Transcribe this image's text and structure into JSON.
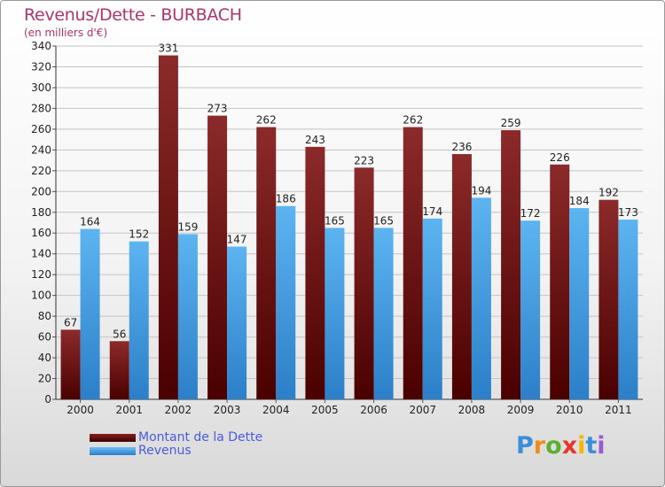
{
  "chart_data": {
    "type": "bar",
    "title": "Revenus/Dette - BURBACH",
    "subtitle": "(en milliers d'€)",
    "categories": [
      "2000",
      "2001",
      "2002",
      "2003",
      "2004",
      "2005",
      "2006",
      "2007",
      "2008",
      "2009",
      "2010",
      "2011"
    ],
    "series": [
      {
        "name": "Montant de la Dette",
        "color": "#7a1a1a",
        "values": [
          67,
          56,
          331,
          273,
          262,
          243,
          223,
          262,
          236,
          259,
          226,
          192
        ]
      },
      {
        "name": "Revenus",
        "color": "#4aa0e0",
        "values": [
          164,
          152,
          159,
          147,
          186,
          165,
          165,
          174,
          194,
          172,
          184,
          173
        ]
      }
    ],
    "ylim": [
      0,
      340
    ],
    "yticks": [
      0,
      20,
      40,
      60,
      80,
      100,
      120,
      140,
      160,
      180,
      200,
      220,
      240,
      260,
      280,
      300,
      320,
      340
    ],
    "grid": true,
    "legend_position": "bottom-left"
  },
  "logo": {
    "text": "Proxiti",
    "letters": [
      "P",
      "r",
      "o",
      "x",
      "i",
      "t",
      "i"
    ],
    "colors": [
      "#3a8fd8",
      "#f08a1c",
      "#5bb030",
      "#e8352c",
      "#f5b800",
      "#3a8fd8",
      "#9a5bd0"
    ]
  }
}
